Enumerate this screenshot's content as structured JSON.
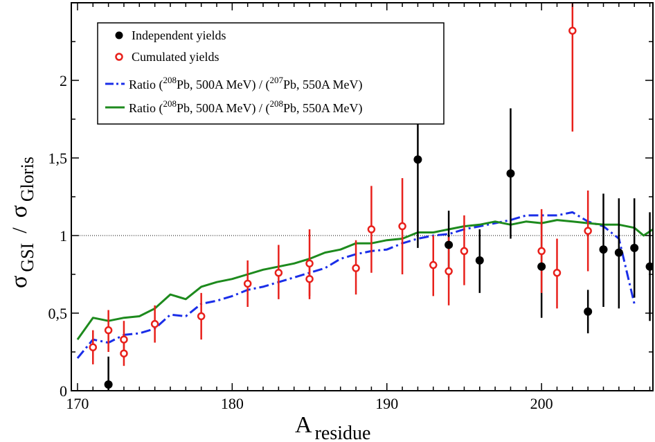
{
  "chart_data": {
    "type": "scatter",
    "xlabel": {
      "main": "A",
      "sub": "residue"
    },
    "ylabel": {
      "sym1": "σ",
      "sub1": "GSI",
      "sep": "/",
      "sym2": "σ",
      "sub2": "Gloris"
    },
    "xlim": [
      169.6,
      207.2
    ],
    "ylim": [
      0,
      2.5
    ],
    "x_ticks": [
      170,
      180,
      190,
      200
    ],
    "x_tick_labels": [
      "170",
      "180",
      "190",
      "200"
    ],
    "y_ticks": [
      0,
      0.5,
      1,
      1.5,
      2
    ],
    "y_tick_labels": [
      "0",
      "0,5",
      "1",
      "1,5",
      "2"
    ],
    "reference_line": {
      "y": 1,
      "style": "dotted"
    },
    "colors": {
      "independent": "#000000",
      "cumulated": "#e8201b",
      "ratio207": "#1a2ee8",
      "ratio208": "#1d8a1d"
    },
    "legend": {
      "position": "top-left",
      "entries": [
        {
          "key": "independent",
          "text": "Independent yields"
        },
        {
          "key": "cumulated",
          "text": "Cumulated yields"
        },
        {
          "key": "ratio207",
          "pre": "Ratio (",
          "sup1": "208",
          "mid1": "Pb, 500A MeV) / (",
          "sup2": "207",
          "mid2": "Pb, 550A MeV)"
        },
        {
          "key": "ratio208",
          "pre": "Ratio (",
          "sup1": "208",
          "mid1": "Pb, 500A MeV) / (",
          "sup2": "208",
          "mid2": "Pb, 550A MeV)"
        }
      ]
    },
    "series": [
      {
        "name": "Independent yields",
        "key": "independent",
        "marker": "filled-circle",
        "points": [
          {
            "x": 172,
            "y": 0.04,
            "lo": 0.0,
            "hi": 0.22
          },
          {
            "x": 192,
            "y": 1.49,
            "lo": 0.92,
            "hi": 2.05
          },
          {
            "x": 194,
            "y": 0.94,
            "lo": 0.73,
            "hi": 1.16
          },
          {
            "x": 196,
            "y": 0.84,
            "lo": 0.63,
            "hi": 1.04
          },
          {
            "x": 198,
            "y": 1.4,
            "lo": 0.98,
            "hi": 1.82
          },
          {
            "x": 200,
            "y": 0.8,
            "lo": 0.47,
            "hi": 1.12
          },
          {
            "x": 203,
            "y": 0.51,
            "lo": 0.37,
            "hi": 0.65
          },
          {
            "x": 204,
            "y": 0.91,
            "lo": 0.54,
            "hi": 1.27
          },
          {
            "x": 205,
            "y": 0.89,
            "lo": 0.53,
            "hi": 1.24
          },
          {
            "x": 206,
            "y": 0.92,
            "lo": 0.6,
            "hi": 1.24
          },
          {
            "x": 207,
            "y": 0.8,
            "lo": 0.45,
            "hi": 1.15
          }
        ]
      },
      {
        "name": "Cumulated yields",
        "key": "cumulated",
        "marker": "open-circle",
        "points": [
          {
            "x": 171,
            "y": 0.28,
            "lo": 0.17,
            "hi": 0.39
          },
          {
            "x": 172,
            "y": 0.39,
            "lo": 0.25,
            "hi": 0.52
          },
          {
            "x": 173,
            "y": 0.33,
            "lo": 0.21,
            "hi": 0.45
          },
          {
            "x": 173,
            "y": 0.24,
            "lo": 0.16,
            "hi": 0.31
          },
          {
            "x": 175,
            "y": 0.43,
            "lo": 0.31,
            "hi": 0.55
          },
          {
            "x": 178,
            "y": 0.48,
            "lo": 0.33,
            "hi": 0.63
          },
          {
            "x": 181,
            "y": 0.69,
            "lo": 0.54,
            "hi": 0.84
          },
          {
            "x": 183,
            "y": 0.76,
            "lo": 0.59,
            "hi": 0.94
          },
          {
            "x": 185,
            "y": 0.82,
            "lo": 0.61,
            "hi": 1.04
          },
          {
            "x": 185,
            "y": 0.72,
            "lo": 0.59,
            "hi": 0.85
          },
          {
            "x": 188,
            "y": 0.79,
            "lo": 0.62,
            "hi": 0.97
          },
          {
            "x": 189,
            "y": 1.04,
            "lo": 0.76,
            "hi": 1.32
          },
          {
            "x": 191,
            "y": 1.06,
            "lo": 0.75,
            "hi": 1.37
          },
          {
            "x": 193,
            "y": 0.81,
            "lo": 0.61,
            "hi": 1.0
          },
          {
            "x": 194,
            "y": 0.77,
            "lo": 0.55,
            "hi": 0.99
          },
          {
            "x": 195,
            "y": 0.9,
            "lo": 0.68,
            "hi": 1.13
          },
          {
            "x": 200,
            "y": 0.9,
            "lo": 0.63,
            "hi": 1.17
          },
          {
            "x": 201,
            "y": 0.76,
            "lo": 0.53,
            "hi": 0.98
          },
          {
            "x": 202,
            "y": 2.32,
            "lo": 1.67,
            "hi": 2.5
          },
          {
            "x": 203,
            "y": 1.03,
            "lo": 0.77,
            "hi": 1.29
          }
        ]
      },
      {
        "name": "Ratio (208Pb, 500A MeV) / (207Pb, 550A MeV)",
        "key": "ratio207",
        "line_style": "dash-dot",
        "x": [
          170,
          171,
          172,
          173,
          174,
          175,
          176,
          177,
          178,
          179,
          180,
          181,
          182,
          183,
          184,
          185,
          186,
          187,
          188,
          189,
          190,
          191,
          192,
          193,
          194,
          195,
          196,
          197,
          198,
          199,
          200,
          201,
          202,
          203,
          204,
          205,
          206
        ],
        "y": [
          0.21,
          0.33,
          0.31,
          0.36,
          0.37,
          0.4,
          0.49,
          0.48,
          0.56,
          0.58,
          0.61,
          0.65,
          0.67,
          0.7,
          0.73,
          0.76,
          0.79,
          0.85,
          0.88,
          0.9,
          0.91,
          0.95,
          0.98,
          1.0,
          1.01,
          1.04,
          1.06,
          1.08,
          1.1,
          1.13,
          1.13,
          1.13,
          1.15,
          1.09,
          1.06,
          0.98,
          0.56
        ]
      },
      {
        "name": "Ratio (208Pb, 500A MeV) / (208Pb, 550A MeV)",
        "key": "ratio208",
        "line_style": "solid",
        "x": [
          170,
          171,
          172,
          173,
          174,
          175,
          176,
          177,
          178,
          179,
          180,
          181,
          182,
          183,
          184,
          185,
          186,
          187,
          188,
          189,
          190,
          191,
          192,
          193,
          194,
          195,
          196,
          197,
          198,
          199,
          200,
          201,
          202,
          203,
          204,
          205,
          206,
          206.6,
          207.2
        ],
        "y": [
          0.33,
          0.47,
          0.45,
          0.47,
          0.48,
          0.53,
          0.62,
          0.59,
          0.67,
          0.7,
          0.72,
          0.75,
          0.78,
          0.8,
          0.82,
          0.85,
          0.89,
          0.91,
          0.95,
          0.95,
          0.97,
          0.98,
          1.02,
          1.02,
          1.04,
          1.06,
          1.07,
          1.09,
          1.07,
          1.09,
          1.08,
          1.1,
          1.09,
          1.08,
          1.07,
          1.07,
          1.05,
          1.0,
          1.04
        ]
      }
    ]
  }
}
